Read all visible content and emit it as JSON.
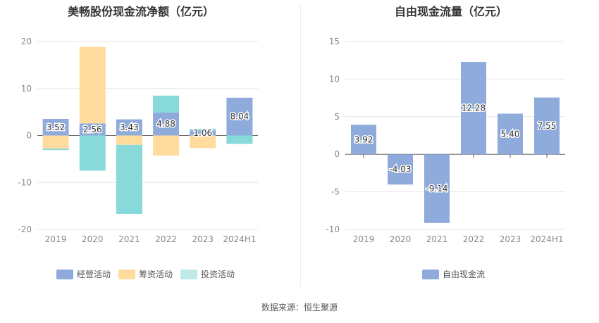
{
  "chart_data": [
    {
      "type": "bar",
      "stacked": true,
      "title": "美畅股份现金流净额（亿元）",
      "categories": [
        "2019",
        "2020",
        "2021",
        "2022",
        "2023",
        "2024H1"
      ],
      "ylim": [
        -20,
        20
      ],
      "yticks": [
        20,
        10,
        0,
        -10,
        -20
      ],
      "grid": true,
      "legend": "bottom",
      "series": [
        {
          "name": "经营活动",
          "color": "#8eabdb",
          "values": [
            3.52,
            2.56,
            3.43,
            4.88,
            1.06,
            8.04
          ],
          "labels": [
            "3.52",
            "2.56",
            "3.43",
            "4.88",
            "1.06",
            "8.04"
          ]
        },
        {
          "name": "筹资活动",
          "color": "#ffdb9e",
          "values": [
            -2.8,
            16.3,
            -2.0,
            -4.3,
            -2.7,
            0.0
          ]
        },
        {
          "name": "投资活动",
          "color": "#88d9d9",
          "values": [
            -0.3,
            -7.5,
            -14.7,
            3.6,
            0.3,
            -1.8
          ]
        }
      ]
    },
    {
      "type": "bar",
      "title": "自由现金流量（亿元）",
      "categories": [
        "2019",
        "2020",
        "2021",
        "2022",
        "2023",
        "2024H1"
      ],
      "ylim": [
        -10,
        15
      ],
      "yticks": [
        15,
        10,
        5,
        0,
        -5,
        -10
      ],
      "grid": true,
      "legend": "bottom",
      "series": [
        {
          "name": "自由现金流",
          "color": "#8eabdb",
          "values": [
            3.92,
            -4.03,
            -9.14,
            12.28,
            5.4,
            7.55
          ],
          "labels": [
            "3.92",
            "-4.03",
            "-9.14",
            "12.28",
            "5.40",
            "7.55"
          ]
        }
      ]
    }
  ],
  "footer": "数据来源：恒生聚源"
}
